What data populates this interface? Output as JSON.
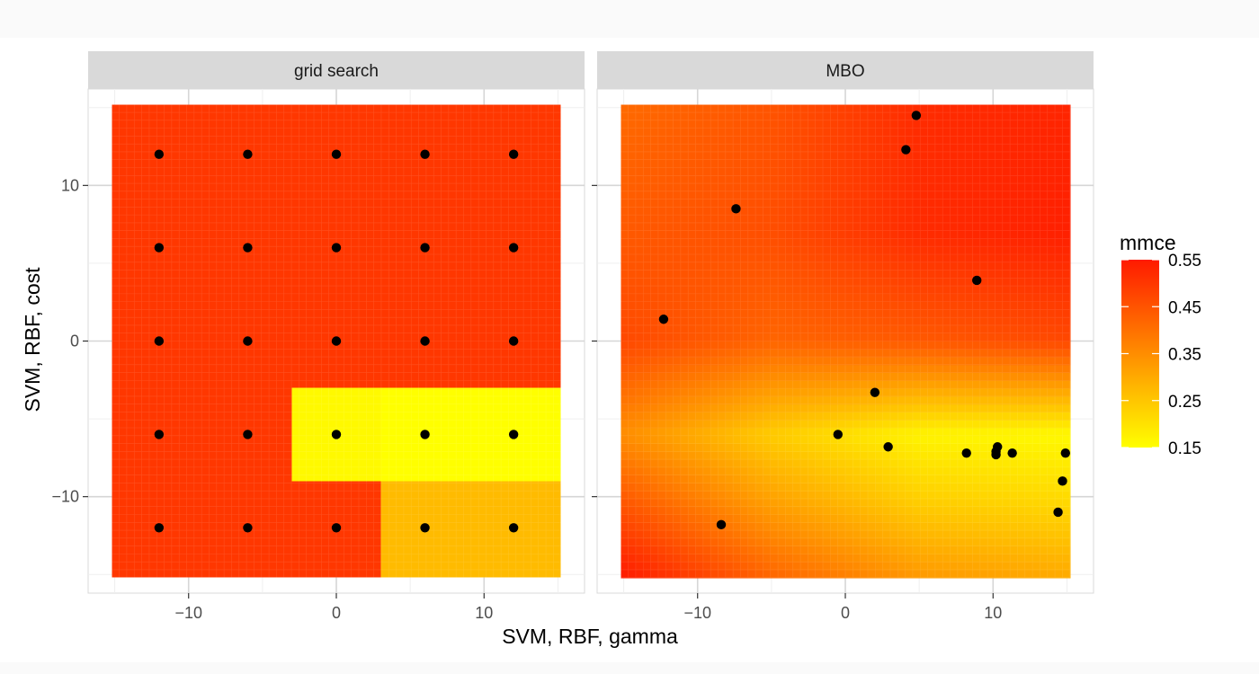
{
  "chart_data": {
    "type": "heatmap",
    "xlabel": "SVM, RBF, gamma",
    "ylabel": "SVM, RBF, cost",
    "xlim": [
      -16.8,
      16.8
    ],
    "ylim": [
      -16.2,
      16.2
    ],
    "x_ticks": [
      -10,
      0,
      10
    ],
    "x_tick_labels": [
      "−10",
      "0",
      "10"
    ],
    "y_ticks": [
      -10,
      0,
      10
    ],
    "y_tick_labels": [
      "−10",
      "0",
      "10"
    ],
    "grid": true,
    "legend": {
      "title": "mmce",
      "placement": "right",
      "range": [
        0.15,
        0.55
      ],
      "breaks": [
        0.55,
        0.45,
        0.35,
        0.25,
        0.15
      ],
      "break_labels": [
        "0.55",
        "0.45",
        "0.35",
        "0.25",
        "0.15"
      ],
      "low_color": "#ffff00",
      "high_color": "#ff1a00"
    },
    "facets": [
      {
        "name": "grid search",
        "surface": {
          "x_range": [
            -15.2,
            15.2
          ],
          "y_range": [
            -15.2,
            15.2
          ],
          "cells": [
            {
              "x0": -15.2,
              "x1": 15.2,
              "y0": -15.2,
              "y1": 15.2,
              "mmce": 0.5
            },
            {
              "x0": -3.0,
              "x1": 3.0,
              "y0": -9.0,
              "y1": -3.0,
              "mmce": 0.16
            },
            {
              "x0": 3.0,
              "x1": 15.2,
              "y0": -9.0,
              "y1": -3.0,
              "mmce": 0.15
            },
            {
              "x0": 3.0,
              "x1": 15.2,
              "y0": -15.2,
              "y1": -9.0,
              "mmce": 0.27
            }
          ]
        },
        "points": [
          {
            "x": -12,
            "y": 12
          },
          {
            "x": -6,
            "y": 12
          },
          {
            "x": 0,
            "y": 12
          },
          {
            "x": 6,
            "y": 12
          },
          {
            "x": 12,
            "y": 12
          },
          {
            "x": -12,
            "y": 6
          },
          {
            "x": -6,
            "y": 6
          },
          {
            "x": 0,
            "y": 6
          },
          {
            "x": 6,
            "y": 6
          },
          {
            "x": 12,
            "y": 6
          },
          {
            "x": -12,
            "y": 0
          },
          {
            "x": -6,
            "y": 0
          },
          {
            "x": 0,
            "y": 0
          },
          {
            "x": 6,
            "y": 0
          },
          {
            "x": 12,
            "y": 0
          },
          {
            "x": -12,
            "y": -6
          },
          {
            "x": -6,
            "y": -6
          },
          {
            "x": 0,
            "y": -6
          },
          {
            "x": 6,
            "y": -6
          },
          {
            "x": 12,
            "y": -6
          },
          {
            "x": -12,
            "y": -12
          },
          {
            "x": -6,
            "y": -12
          },
          {
            "x": 0,
            "y": -12
          },
          {
            "x": 6,
            "y": -12
          },
          {
            "x": 12,
            "y": -12
          }
        ]
      },
      {
        "name": "MBO",
        "surface": {
          "x_range": [
            -15.2,
            15.2
          ],
          "y_range": [
            -15.2,
            15.2
          ],
          "control_points": [
            {
              "x": -15.2,
              "y": 15.2,
              "mmce": 0.41
            },
            {
              "x": -5.0,
              "y": 15.2,
              "mmce": 0.45
            },
            {
              "x": 5.0,
              "y": 15.2,
              "mmce": 0.52
            },
            {
              "x": 15.2,
              "y": 15.2,
              "mmce": 0.53
            },
            {
              "x": -15.2,
              "y": 7.0,
              "mmce": 0.44
            },
            {
              "x": -5.0,
              "y": 7.0,
              "mmce": 0.46
            },
            {
              "x": 5.0,
              "y": 7.0,
              "mmce": 0.52
            },
            {
              "x": 15.2,
              "y": 7.0,
              "mmce": 0.54
            },
            {
              "x": -15.2,
              "y": 0.0,
              "mmce": 0.47
            },
            {
              "x": -5.0,
              "y": 0.0,
              "mmce": 0.42
            },
            {
              "x": 5.0,
              "y": 0.0,
              "mmce": 0.44
            },
            {
              "x": 15.2,
              "y": 0.0,
              "mmce": 0.47
            },
            {
              "x": -15.2,
              "y": -6.0,
              "mmce": 0.35
            },
            {
              "x": -5.0,
              "y": -6.0,
              "mmce": 0.24
            },
            {
              "x": 5.0,
              "y": -6.0,
              "mmce": 0.17
            },
            {
              "x": 15.2,
              "y": -6.0,
              "mmce": 0.16
            },
            {
              "x": -15.2,
              "y": -10.5,
              "mmce": 0.45
            },
            {
              "x": -5.0,
              "y": -10.5,
              "mmce": 0.32
            },
            {
              "x": 5.0,
              "y": -10.5,
              "mmce": 0.24
            },
            {
              "x": 15.2,
              "y": -10.5,
              "mmce": 0.22
            },
            {
              "x": -15.2,
              "y": -15.2,
              "mmce": 0.55
            },
            {
              "x": -5.0,
              "y": -15.2,
              "mmce": 0.42
            },
            {
              "x": 5.0,
              "y": -15.2,
              "mmce": 0.33
            },
            {
              "x": 15.2,
              "y": -15.2,
              "mmce": 0.3
            }
          ]
        },
        "points": [
          {
            "x": 4.8,
            "y": 14.5
          },
          {
            "x": 4.1,
            "y": 12.3
          },
          {
            "x": -7.4,
            "y": 8.5
          },
          {
            "x": 8.9,
            "y": 3.9
          },
          {
            "x": -12.3,
            "y": 1.4
          },
          {
            "x": 2.0,
            "y": -3.3
          },
          {
            "x": -0.5,
            "y": -6.0
          },
          {
            "x": 2.9,
            "y": -6.8
          },
          {
            "x": 8.2,
            "y": -7.2
          },
          {
            "x": 10.3,
            "y": -6.8
          },
          {
            "x": 10.2,
            "y": -7.1
          },
          {
            "x": 10.2,
            "y": -7.3
          },
          {
            "x": 11.3,
            "y": -7.2
          },
          {
            "x": 14.9,
            "y": -7.2
          },
          {
            "x": 14.7,
            "y": -9.0
          },
          {
            "x": 14.4,
            "y": -11.0
          },
          {
            "x": -8.4,
            "y": -11.8
          }
        ]
      }
    ]
  }
}
